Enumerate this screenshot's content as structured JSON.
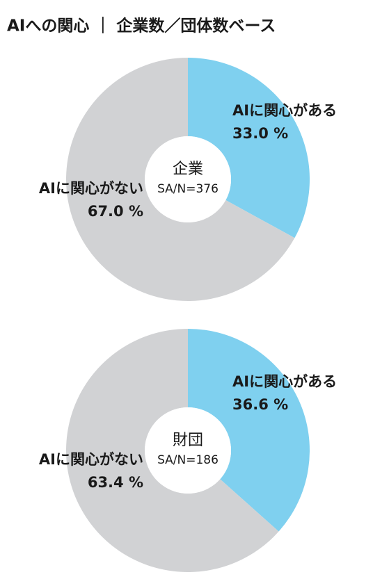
{
  "title": "AIへの関心 ｜ 企業数／団体数ベース",
  "chart_data": [
    {
      "type": "donut",
      "center_title": "企業",
      "center_note": "SA/N=376",
      "categories": [
        "AIに関心がある",
        "AIに関心がない"
      ],
      "values": [
        33.0,
        67.0
      ],
      "value_labels": [
        "33.0 %",
        "67.0 %"
      ],
      "colors": [
        "#7fd0ef",
        "#d1d2d4"
      ]
    },
    {
      "type": "donut",
      "center_title": "財団",
      "center_note": "SA/N=186",
      "categories": [
        "AIに関心がある",
        "AIに関心がない"
      ],
      "values": [
        36.6,
        63.4
      ],
      "value_labels": [
        "36.6 %",
        "63.4 %"
      ],
      "colors": [
        "#7fd0ef",
        "#d1d2d4"
      ]
    }
  ]
}
